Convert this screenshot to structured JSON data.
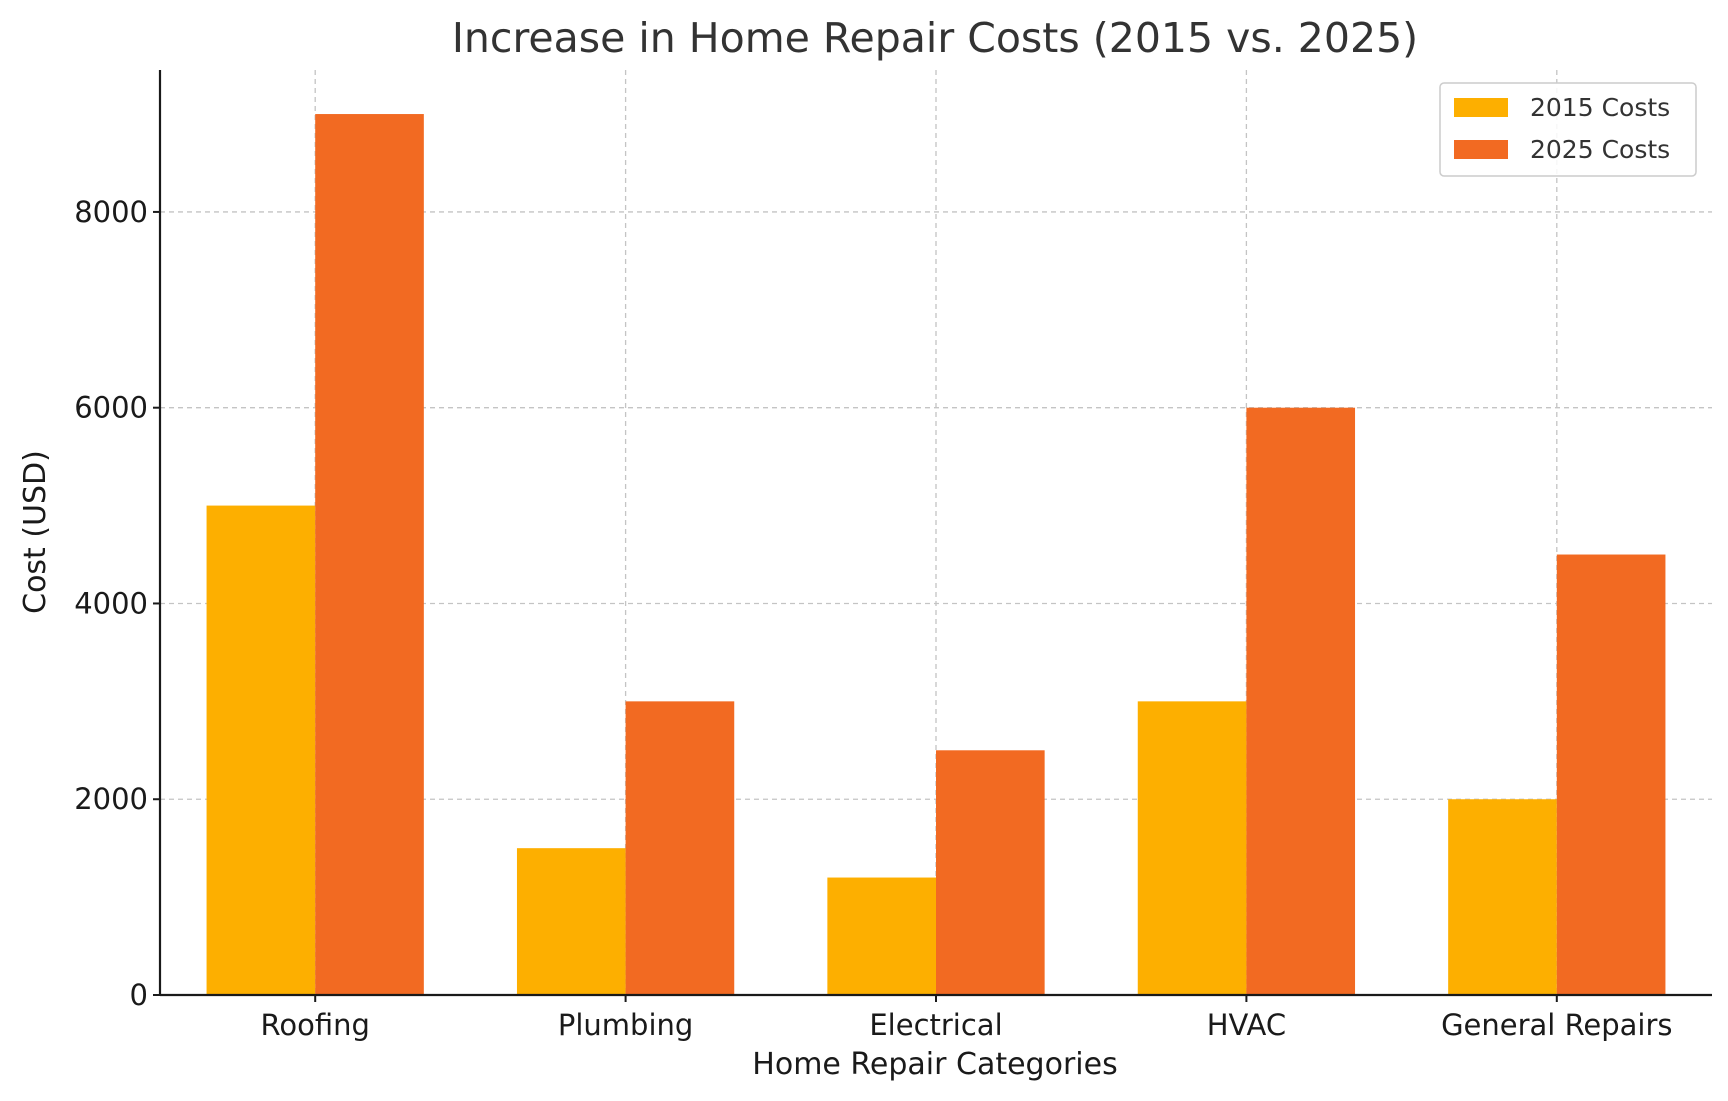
{
  "chart_data": {
    "type": "bar",
    "title": "Increase in Home Repair Costs (2015 vs. 2025)",
    "xlabel": "Home Repair Categories",
    "ylabel": "Cost (USD)",
    "categories": [
      "Roofing",
      "Plumbing",
      "Electrical",
      "HVAC",
      "General Repairs"
    ],
    "series": [
      {
        "name": "2015 Costs",
        "color": "#FDAF00",
        "values": [
          5000,
          1500,
          1200,
          3000,
          2000
        ]
      },
      {
        "name": "2025 Costs",
        "color": "#F26A22",
        "values": [
          9000,
          3000,
          2500,
          6000,
          4500
        ]
      }
    ],
    "ylim": [
      0,
      9450
    ],
    "yticks": [
      0,
      2000,
      4000,
      6000,
      8000
    ],
    "grid": true,
    "legend_position": "top-right"
  }
}
